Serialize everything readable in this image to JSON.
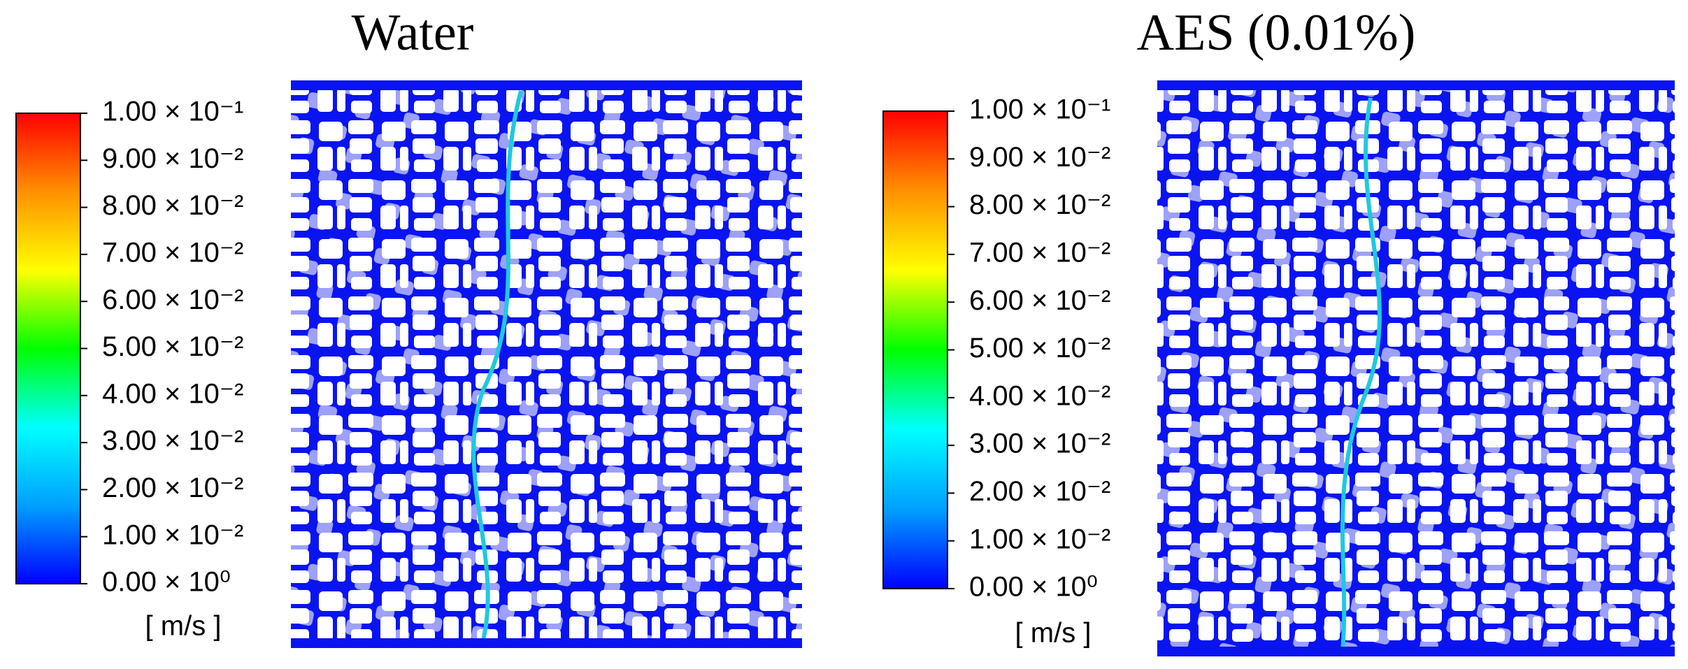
{
  "chart_data": [
    {
      "type": "colormap",
      "title": "Water",
      "clim": [
        0,
        0.1
      ],
      "cticks": [
        {
          "value": 0,
          "label": "0.00 × 10⁰"
        },
        {
          "value": 0.01,
          "label": "1.00 × 10⁻²"
        },
        {
          "value": 0.02,
          "label": "2.00 × 10⁻²"
        },
        {
          "value": 0.03,
          "label": "3.00 × 10⁻²"
        },
        {
          "value": 0.04,
          "label": "4.00 × 10⁻²"
        },
        {
          "value": 0.05,
          "label": "5.00 × 10⁻²"
        },
        {
          "value": 0.06,
          "label": "6.00 × 10⁻²"
        },
        {
          "value": 0.07,
          "label": "7.00 × 10⁻²"
        },
        {
          "value": 0.08,
          "label": "8.00 × 10⁻²"
        },
        {
          "value": 0.09,
          "label": "9.00 × 10⁻²"
        },
        {
          "value": 0.1,
          "label": "1.00 × 10⁻¹"
        }
      ],
      "clabel": "[ m/s ]",
      "colormap": [
        "#0000ff",
        "#00a0ff",
        "#00ffff",
        "#00ff00",
        "#ffff00",
        "#ff9000",
        "#ff0000"
      ]
    },
    {
      "type": "colormap",
      "title": "AES (0.01%)",
      "clim": [
        0,
        0.1
      ],
      "cticks": [
        {
          "value": 0,
          "label": "0.00 × 10⁰"
        },
        {
          "value": 0.01,
          "label": "1.00 × 10⁻²"
        },
        {
          "value": 0.02,
          "label": "2.00 × 10⁻²"
        },
        {
          "value": 0.03,
          "label": "3.00 × 10⁻²"
        },
        {
          "value": 0.04,
          "label": "4.00 × 10⁻²"
        },
        {
          "value": 0.05,
          "label": "5.00 × 10⁻²"
        },
        {
          "value": 0.06,
          "label": "6.00 × 10⁻²"
        },
        {
          "value": 0.07,
          "label": "7.00 × 10⁻²"
        },
        {
          "value": 0.08,
          "label": "8.00 × 10⁻²"
        },
        {
          "value": 0.09,
          "label": "9.00 × 10⁻²"
        },
        {
          "value": 0.1,
          "label": "1.00 × 10⁻¹"
        }
      ],
      "clabel": "[ m/s ]",
      "colormap": [
        "#0000ff",
        "#00a0ff",
        "#00ffff",
        "#00ff00",
        "#ffff00",
        "#ff9000",
        "#ff0000"
      ]
    }
  ]
}
